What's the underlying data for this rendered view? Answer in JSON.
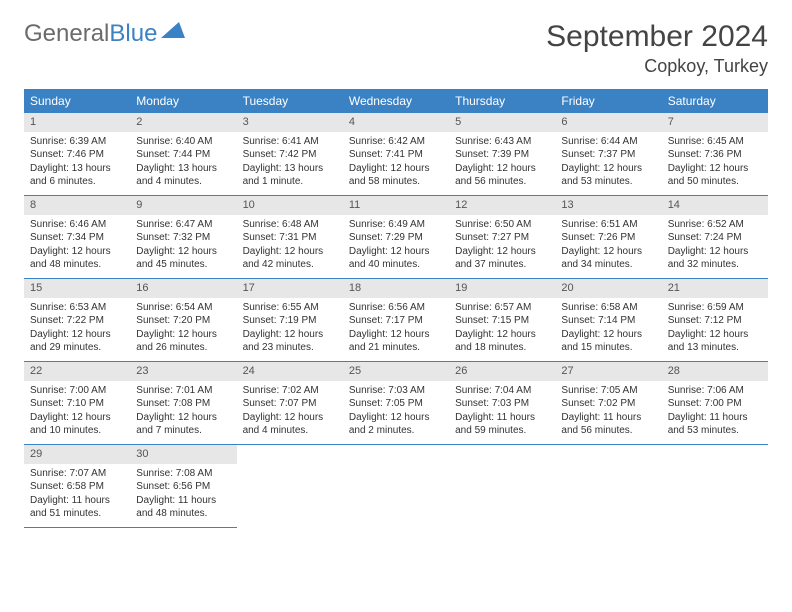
{
  "logo": {
    "text1": "General",
    "text2": "Blue"
  },
  "title": "September 2024",
  "location": "Copkoy, Turkey",
  "header_bg": "#3b82c4",
  "daynum_bg": "#e7e7e7",
  "days_of_week": [
    "Sunday",
    "Monday",
    "Tuesday",
    "Wednesday",
    "Thursday",
    "Friday",
    "Saturday"
  ],
  "weeks": [
    [
      {
        "n": "1",
        "sunrise": "6:39 AM",
        "sunset": "7:46 PM",
        "daylight": "13 hours and 6 minutes."
      },
      {
        "n": "2",
        "sunrise": "6:40 AM",
        "sunset": "7:44 PM",
        "daylight": "13 hours and 4 minutes."
      },
      {
        "n": "3",
        "sunrise": "6:41 AM",
        "sunset": "7:42 PM",
        "daylight": "13 hours and 1 minute."
      },
      {
        "n": "4",
        "sunrise": "6:42 AM",
        "sunset": "7:41 PM",
        "daylight": "12 hours and 58 minutes."
      },
      {
        "n": "5",
        "sunrise": "6:43 AM",
        "sunset": "7:39 PM",
        "daylight": "12 hours and 56 minutes."
      },
      {
        "n": "6",
        "sunrise": "6:44 AM",
        "sunset": "7:37 PM",
        "daylight": "12 hours and 53 minutes."
      },
      {
        "n": "7",
        "sunrise": "6:45 AM",
        "sunset": "7:36 PM",
        "daylight": "12 hours and 50 minutes."
      }
    ],
    [
      {
        "n": "8",
        "sunrise": "6:46 AM",
        "sunset": "7:34 PM",
        "daylight": "12 hours and 48 minutes."
      },
      {
        "n": "9",
        "sunrise": "6:47 AM",
        "sunset": "7:32 PM",
        "daylight": "12 hours and 45 minutes."
      },
      {
        "n": "10",
        "sunrise": "6:48 AM",
        "sunset": "7:31 PM",
        "daylight": "12 hours and 42 minutes."
      },
      {
        "n": "11",
        "sunrise": "6:49 AM",
        "sunset": "7:29 PM",
        "daylight": "12 hours and 40 minutes."
      },
      {
        "n": "12",
        "sunrise": "6:50 AM",
        "sunset": "7:27 PM",
        "daylight": "12 hours and 37 minutes."
      },
      {
        "n": "13",
        "sunrise": "6:51 AM",
        "sunset": "7:26 PM",
        "daylight": "12 hours and 34 minutes."
      },
      {
        "n": "14",
        "sunrise": "6:52 AM",
        "sunset": "7:24 PM",
        "daylight": "12 hours and 32 minutes."
      }
    ],
    [
      {
        "n": "15",
        "sunrise": "6:53 AM",
        "sunset": "7:22 PM",
        "daylight": "12 hours and 29 minutes."
      },
      {
        "n": "16",
        "sunrise": "6:54 AM",
        "sunset": "7:20 PM",
        "daylight": "12 hours and 26 minutes."
      },
      {
        "n": "17",
        "sunrise": "6:55 AM",
        "sunset": "7:19 PM",
        "daylight": "12 hours and 23 minutes."
      },
      {
        "n": "18",
        "sunrise": "6:56 AM",
        "sunset": "7:17 PM",
        "daylight": "12 hours and 21 minutes."
      },
      {
        "n": "19",
        "sunrise": "6:57 AM",
        "sunset": "7:15 PM",
        "daylight": "12 hours and 18 minutes."
      },
      {
        "n": "20",
        "sunrise": "6:58 AM",
        "sunset": "7:14 PM",
        "daylight": "12 hours and 15 minutes."
      },
      {
        "n": "21",
        "sunrise": "6:59 AM",
        "sunset": "7:12 PM",
        "daylight": "12 hours and 13 minutes."
      }
    ],
    [
      {
        "n": "22",
        "sunrise": "7:00 AM",
        "sunset": "7:10 PM",
        "daylight": "12 hours and 10 minutes."
      },
      {
        "n": "23",
        "sunrise": "7:01 AM",
        "sunset": "7:08 PM",
        "daylight": "12 hours and 7 minutes."
      },
      {
        "n": "24",
        "sunrise": "7:02 AM",
        "sunset": "7:07 PM",
        "daylight": "12 hours and 4 minutes."
      },
      {
        "n": "25",
        "sunrise": "7:03 AM",
        "sunset": "7:05 PM",
        "daylight": "12 hours and 2 minutes."
      },
      {
        "n": "26",
        "sunrise": "7:04 AM",
        "sunset": "7:03 PM",
        "daylight": "11 hours and 59 minutes."
      },
      {
        "n": "27",
        "sunrise": "7:05 AM",
        "sunset": "7:02 PM",
        "daylight": "11 hours and 56 minutes."
      },
      {
        "n": "28",
        "sunrise": "7:06 AM",
        "sunset": "7:00 PM",
        "daylight": "11 hours and 53 minutes."
      }
    ],
    [
      {
        "n": "29",
        "sunrise": "7:07 AM",
        "sunset": "6:58 PM",
        "daylight": "11 hours and 51 minutes."
      },
      {
        "n": "30",
        "sunrise": "7:08 AM",
        "sunset": "6:56 PM",
        "daylight": "11 hours and 48 minutes."
      },
      null,
      null,
      null,
      null,
      null
    ]
  ],
  "labels": {
    "sunrise": "Sunrise:",
    "sunset": "Sunset:",
    "daylight": "Daylight:"
  }
}
